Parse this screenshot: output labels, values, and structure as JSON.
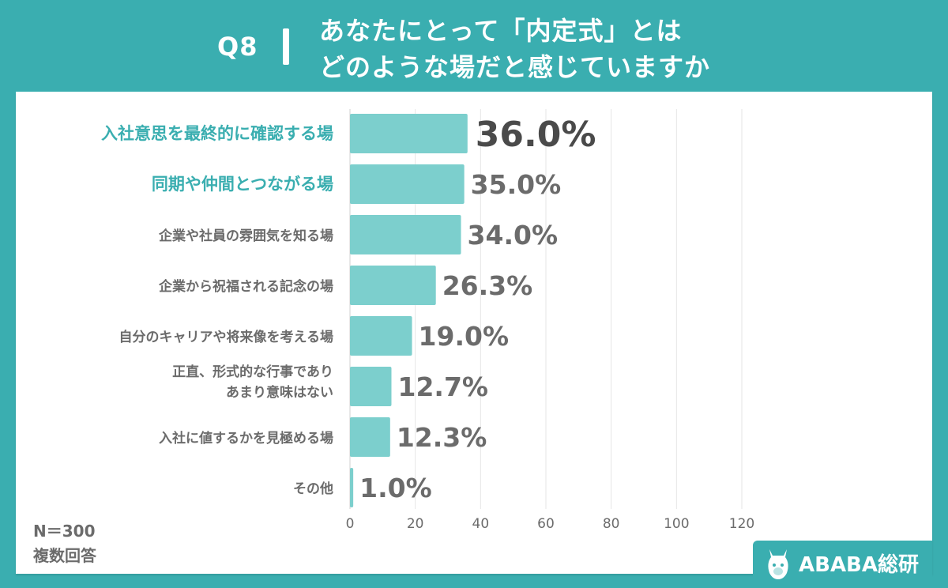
{
  "header": {
    "question": "Q8",
    "title_line1": "あなたにとって「内定式」とは",
    "title_line2": "どのような場だと感じていますか"
  },
  "notes": {
    "n": "N＝300",
    "multi": "複数回答"
  },
  "brand": {
    "name": "ABABA総研"
  },
  "colors": {
    "background": "#3aaeb0",
    "bar": "#7ccfcd",
    "highlight_label": "#3aaeb0",
    "label": "#6b6b6b",
    "value": "#6b6b6b",
    "top_value": "#4a4a4a",
    "grid": "#e6e6e6"
  },
  "chart_data": {
    "type": "bar",
    "orientation": "horizontal",
    "categories": [
      [
        "入社意思を最終的に確認する場"
      ],
      [
        "同期や仲間とつながる場"
      ],
      [
        "企業や社員の雰囲気を知る場"
      ],
      [
        "企業から祝福される記念の場"
      ],
      [
        "自分のキャリアや将来像を考える場"
      ],
      [
        "正直、形式的な行事であり",
        "あまり意味はない"
      ],
      [
        "入社に値するかを見極める場"
      ],
      [
        "その他"
      ]
    ],
    "values": [
      36.0,
      35.0,
      34.0,
      26.3,
      19.0,
      12.7,
      12.3,
      1.0
    ],
    "value_labels": [
      "36.0%",
      "35.0%",
      "34.0%",
      "26.3%",
      "19.0%",
      "12.7%",
      "12.3%",
      "1.0%"
    ],
    "highlighted": [
      true,
      true,
      false,
      false,
      false,
      false,
      false,
      false
    ],
    "x_ticks": [
      "0",
      "20",
      "40",
      "60",
      "80",
      "100",
      "120"
    ],
    "xlim": [
      0,
      120
    ],
    "grid": true
  }
}
